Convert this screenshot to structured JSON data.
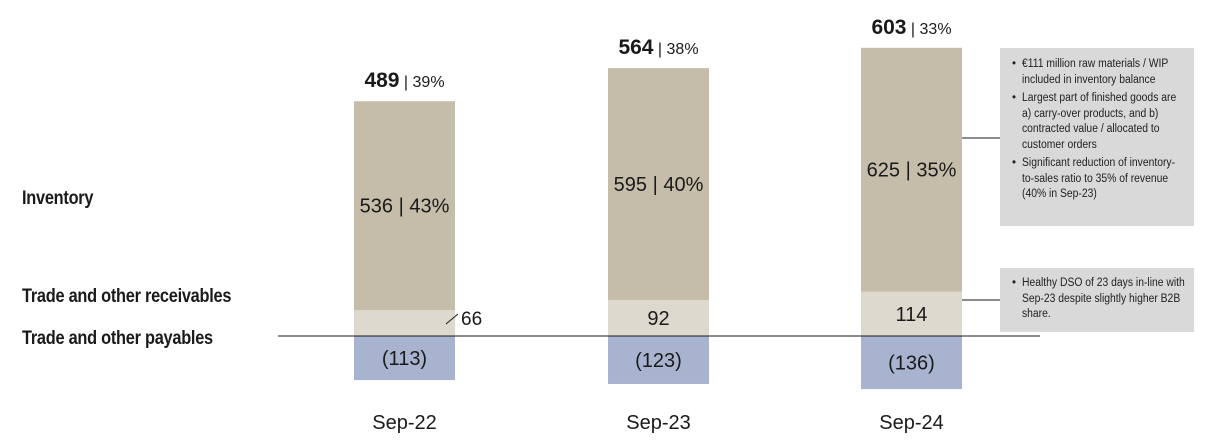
{
  "chart_data": {
    "type": "bar",
    "stacked": true,
    "categories": [
      "Sep-22",
      "Sep-23",
      "Sep-24"
    ],
    "series": [
      {
        "name": "Trade and other payables",
        "values": [
          -113,
          -123,
          -136
        ],
        "labels": [
          "(113)",
          "(123)",
          "(136)"
        ],
        "color": "#a8b3cf"
      },
      {
        "name": "Trade and other receivables",
        "values": [
          66,
          92,
          114
        ],
        "labels": [
          "66",
          "92",
          "114"
        ],
        "color": "#ddd9ce"
      },
      {
        "name": "Inventory",
        "values": [
          536,
          595,
          625
        ],
        "labels": [
          "536 | 43%",
          "595 | 40%",
          "625 | 35%"
        ],
        "color": "#c5bdaa"
      }
    ],
    "totals": [
      {
        "value": "489",
        "pct": "39%"
      },
      {
        "value": "564",
        "pct": "38%"
      },
      {
        "value": "603",
        "pct": "33%"
      }
    ],
    "row_labels": [
      "Inventory",
      "Trade and other receivables",
      "Trade and other payables"
    ],
    "annotations": [
      {
        "target": "Inventory",
        "bullets": [
          "€111 million raw materials / WIP included in inventory balance",
          "Largest part of finished goods are a) carry-over products, and b) contracted value / allocated to customer orders",
          "Significant reduction of inventory-to-sales ratio to 35% of revenue (40% in Sep-23)"
        ]
      },
      {
        "target": "Trade and other receivables",
        "bullets": [
          "Healthy DSO of 23 days in-line with Sep-23 despite slightly higher B2B share."
        ]
      }
    ],
    "title": "",
    "xlabel": "",
    "ylabel": "",
    "grid": false
  }
}
